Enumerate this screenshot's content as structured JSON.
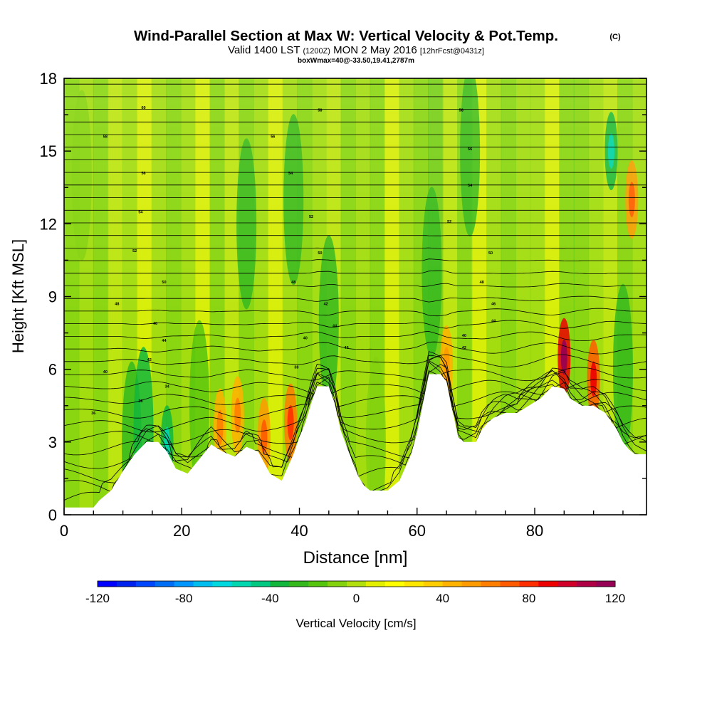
{
  "chart_data": {
    "type": "heatmap",
    "title": "Wind-Parallel Section at Max W: Vertical Velocity & Pot.Temp.",
    "title_mark": "(C)",
    "subtitle": {
      "valid": "Valid 1400 LST",
      "zulu": "(1200Z)",
      "date": "MON 2 May 2016",
      "fcst": "[12hrFcst@0431z]"
    },
    "box_info": "boxWmax=40@-33.50,19.41,2787m",
    "xlabel": "Distance [nm]",
    "ylabel": "Height [Kft MSL]",
    "xlim": [
      0,
      99
    ],
    "ylim": [
      0,
      18
    ],
    "xticks": [
      0,
      20,
      40,
      60,
      80
    ],
    "yticks": [
      0,
      3,
      6,
      9,
      12,
      15,
      18
    ],
    "colorbar": {
      "label": "Vertical Velocity [cm/s]",
      "range": [
        -120,
        120
      ],
      "tick_labels": [
        "-120",
        "-80",
        "-40",
        "0",
        "40",
        "80",
        "120"
      ],
      "colors": [
        "#0000ff",
        "#0022ee",
        "#0046ff",
        "#006ef4",
        "#0096ff",
        "#00bdf0",
        "#00d8e0",
        "#00d6b0",
        "#00c880",
        "#12b63c",
        "#34b81c",
        "#55c40e",
        "#84d20e",
        "#b2e00e",
        "#e2f000",
        "#ffff00",
        "#ffe600",
        "#ffcd00",
        "#ffb200",
        "#ff9a00",
        "#ff7e00",
        "#ff5a00",
        "#ff2e00",
        "#ec0000",
        "#d00028",
        "#b00045",
        "#960055"
      ]
    },
    "terrain_kft": [
      [
        0,
        0.3
      ],
      [
        5,
        0.3
      ],
      [
        6,
        0.6
      ],
      [
        8,
        1
      ],
      [
        10,
        1.8
      ],
      [
        12,
        2.5
      ],
      [
        14,
        3
      ],
      [
        16,
        3
      ],
      [
        17.5,
        2.6
      ],
      [
        19,
        1.9
      ],
      [
        21,
        1.7
      ],
      [
        23,
        2.3
      ],
      [
        25,
        2.9
      ],
      [
        27,
        2.6
      ],
      [
        29,
        2.4
      ],
      [
        31,
        2.8
      ],
      [
        33,
        2.6
      ],
      [
        35,
        1.7
      ],
      [
        37,
        1.4
      ],
      [
        39,
        2.5
      ],
      [
        40,
        3.2
      ],
      [
        41,
        3.8
      ],
      [
        42,
        4.6
      ],
      [
        43,
        5.3
      ],
      [
        45,
        5.3
      ],
      [
        46,
        4.6
      ],
      [
        47,
        3.5
      ],
      [
        49,
        2.2
      ],
      [
        50,
        1.6
      ],
      [
        51,
        1.2
      ],
      [
        52,
        1
      ],
      [
        55,
        1
      ],
      [
        57,
        1.4
      ],
      [
        59,
        2.5
      ],
      [
        60,
        3.4
      ],
      [
        61,
        4.6
      ],
      [
        62,
        5.8
      ],
      [
        64,
        5.8
      ],
      [
        65,
        5.5
      ],
      [
        66,
        4.3
      ],
      [
        67,
        3.2
      ],
      [
        68,
        3
      ],
      [
        70,
        3
      ],
      [
        71,
        3.5
      ],
      [
        72,
        3.8
      ],
      [
        73,
        4
      ],
      [
        75,
        4.2
      ],
      [
        77,
        4.2
      ],
      [
        79,
        4.5
      ],
      [
        81,
        4.8
      ],
      [
        83,
        5.3
      ],
      [
        85,
        5.2
      ],
      [
        86,
        4.8
      ],
      [
        88,
        4.5
      ],
      [
        90,
        4.5
      ],
      [
        92,
        4.2
      ],
      [
        94,
        3.5
      ],
      [
        95,
        3
      ],
      [
        96,
        2.7
      ],
      [
        97,
        2.5
      ],
      [
        99,
        2.5
      ]
    ],
    "vertical_velocity_cms": [
      {
        "x": 11.5,
        "z": 2.8,
        "w": -30
      },
      {
        "x": 13.5,
        "z": 3.4,
        "w": -35
      },
      {
        "x": 17.5,
        "z": 2.9,
        "w": -40
      },
      {
        "x": 23,
        "z": 4.5,
        "w": -15
      },
      {
        "x": 26.5,
        "z": 3.6,
        "w": 45
      },
      {
        "x": 29.5,
        "z": 4.1,
        "w": 45
      },
      {
        "x": 34,
        "z": 3.2,
        "w": 55
      },
      {
        "x": 38.5,
        "z": 3.8,
        "w": 60
      },
      {
        "x": 31,
        "z": 12,
        "w": -30
      },
      {
        "x": 39,
        "z": 13,
        "w": -30
      },
      {
        "x": 45,
        "z": 8,
        "w": -30
      },
      {
        "x": 53,
        "z": 3,
        "w": -10
      },
      {
        "x": 62.5,
        "z": 10,
        "w": -30
      },
      {
        "x": 65,
        "z": 6.2,
        "w": 40
      },
      {
        "x": 69,
        "z": 15,
        "w": -30
      },
      {
        "x": 85,
        "z": 6.5,
        "w": 90
      },
      {
        "x": 90,
        "z": 5.6,
        "w": 70
      },
      {
        "x": 95,
        "z": 6,
        "w": -25
      },
      {
        "x": 96.5,
        "z": 13,
        "w": 55
      },
      {
        "x": 93,
        "z": 15,
        "w": -40
      },
      {
        "x": 3,
        "z": 14,
        "w": -10
      }
    ],
    "theta_contour_labels": [
      {
        "text": "36",
        "x": 5,
        "z": 4.2
      },
      {
        "text": "38",
        "x": 13,
        "z": 4.7
      },
      {
        "text": "34",
        "x": 17.5,
        "z": 5.3
      },
      {
        "text": "40",
        "x": 7,
        "z": 5.9
      },
      {
        "text": "42",
        "x": 14.5,
        "z": 6.4
      },
      {
        "text": "44",
        "x": 17,
        "z": 7.2
      },
      {
        "text": "46",
        "x": 15.5,
        "z": 7.9
      },
      {
        "text": "48",
        "x": 9,
        "z": 8.7
      },
      {
        "text": "50",
        "x": 17,
        "z": 9.6
      },
      {
        "text": "52",
        "x": 12,
        "z": 10.9
      },
      {
        "text": "54",
        "x": 13,
        "z": 12.5
      },
      {
        "text": "56",
        "x": 13.5,
        "z": 14.1
      },
      {
        "text": "58",
        "x": 7,
        "z": 15.6
      },
      {
        "text": "60",
        "x": 13.5,
        "z": 16.8
      },
      {
        "text": "38",
        "x": 39.5,
        "z": 6.1
      },
      {
        "text": "40",
        "x": 41,
        "z": 7.3
      },
      {
        "text": "42",
        "x": 44.5,
        "z": 8.7
      },
      {
        "text": "44",
        "x": 46,
        "z": 7.8
      },
      {
        "text": "46",
        "x": 48,
        "z": 6.9
      },
      {
        "text": "48",
        "x": 39,
        "z": 9.6
      },
      {
        "text": "50",
        "x": 43.5,
        "z": 10.8
      },
      {
        "text": "52",
        "x": 42,
        "z": 12.3
      },
      {
        "text": "54",
        "x": 38.5,
        "z": 14.1
      },
      {
        "text": "56",
        "x": 35.5,
        "z": 15.6
      },
      {
        "text": "58",
        "x": 43.5,
        "z": 16.7
      },
      {
        "text": "40",
        "x": 68,
        "z": 7.4
      },
      {
        "text": "42",
        "x": 68,
        "z": 6.9
      },
      {
        "text": "44",
        "x": 73,
        "z": 8
      },
      {
        "text": "46",
        "x": 73,
        "z": 8.7
      },
      {
        "text": "48",
        "x": 71,
        "z": 9.6
      },
      {
        "text": "50",
        "x": 72.5,
        "z": 10.8
      },
      {
        "text": "52",
        "x": 65.5,
        "z": 12.1
      },
      {
        "text": "54",
        "x": 69,
        "z": 13.6
      },
      {
        "text": "56",
        "x": 69,
        "z": 15.1
      },
      {
        "text": "58",
        "x": 67.5,
        "z": 16.7
      }
    ]
  }
}
